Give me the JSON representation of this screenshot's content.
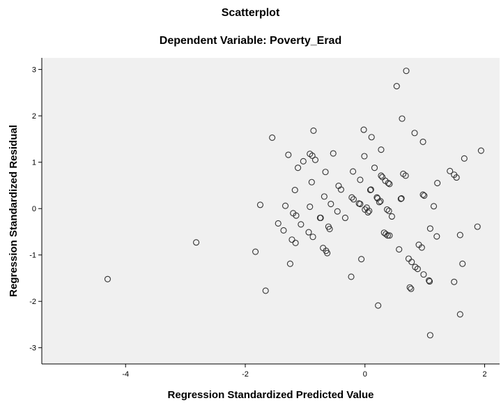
{
  "chart_data": {
    "type": "scatter",
    "title": "Scatterplot",
    "subtitle": "Dependent Variable: Poverty_Erad",
    "xlabel": "Regression Standardized Predicted Value",
    "ylabel": "Regression Standardized Residual",
    "xlim": [
      -5.4,
      2.25
    ],
    "ylim": [
      -3.35,
      3.25
    ],
    "xticks": [
      -4,
      -2,
      0,
      2
    ],
    "yticks": [
      -3,
      -2,
      -1,
      0,
      1,
      2,
      3
    ],
    "grid": false,
    "legend": "none",
    "plot_background": "#f0f0f0",
    "marker_color": "#333333",
    "points": [
      [
        -4.3,
        -1.52
      ],
      [
        -2.82,
        -0.73
      ],
      [
        -1.83,
        -0.93
      ],
      [
        -1.75,
        0.08
      ],
      [
        -1.66,
        -1.77
      ],
      [
        -1.55,
        1.53
      ],
      [
        -1.45,
        -0.32
      ],
      [
        -1.36,
        -0.47
      ],
      [
        -1.33,
        0.06
      ],
      [
        -1.28,
        1.16
      ],
      [
        -1.25,
        -1.19
      ],
      [
        -1.22,
        -0.67
      ],
      [
        -1.2,
        -0.1
      ],
      [
        -1.17,
        0.4
      ],
      [
        -1.16,
        -0.74
      ],
      [
        -1.15,
        -0.15
      ],
      [
        -1.12,
        0.88
      ],
      [
        -1.07,
        -0.34
      ],
      [
        -1.03,
        1.02
      ],
      [
        -0.94,
        -0.51
      ],
      [
        -0.92,
        0.04
      ],
      [
        -0.92,
        1.18
      ],
      [
        -0.89,
        0.57
      ],
      [
        -0.88,
        1.14
      ],
      [
        -0.87,
        -0.61
      ],
      [
        -0.86,
        1.68
      ],
      [
        -0.83,
        1.05
      ],
      [
        -0.75,
        -0.2
      ],
      [
        -0.74,
        -0.2
      ],
      [
        -0.7,
        -0.85
      ],
      [
        -0.68,
        0.26
      ],
      [
        -0.66,
        0.79
      ],
      [
        -0.65,
        -0.91
      ],
      [
        -0.63,
        -0.96
      ],
      [
        -0.61,
        -0.39
      ],
      [
        -0.59,
        -0.44
      ],
      [
        -0.57,
        0.1
      ],
      [
        -0.53,
        1.19
      ],
      [
        -0.46,
        -0.06
      ],
      [
        -0.44,
        0.49
      ],
      [
        -0.4,
        0.41
      ],
      [
        -0.33,
        -0.2
      ],
      [
        -0.23,
        -1.47
      ],
      [
        -0.22,
        0.24
      ],
      [
        -0.2,
        0.8
      ],
      [
        -0.19,
        0.2
      ],
      [
        -0.1,
        0.11
      ],
      [
        -0.08,
        0.1
      ],
      [
        -0.08,
        0.62
      ],
      [
        -0.06,
        -1.09
      ],
      [
        -0.02,
        1.7
      ],
      [
        -0.01,
        1.13
      ],
      [
        0.0,
        -0.02
      ],
      [
        0.03,
        0.02
      ],
      [
        0.05,
        -0.08
      ],
      [
        0.07,
        -0.05
      ],
      [
        0.09,
        0.4
      ],
      [
        0.1,
        0.41
      ],
      [
        0.11,
        1.54
      ],
      [
        0.16,
        0.88
      ],
      [
        0.2,
        0.24
      ],
      [
        0.21,
        0.22
      ],
      [
        0.22,
        -2.09
      ],
      [
        0.24,
        0.14
      ],
      [
        0.26,
        0.16
      ],
      [
        0.27,
        0.71
      ],
      [
        0.27,
        1.27
      ],
      [
        0.29,
        0.68
      ],
      [
        0.32,
        -0.52
      ],
      [
        0.34,
        0.6
      ],
      [
        0.35,
        -0.55
      ],
      [
        0.37,
        -0.02
      ],
      [
        0.38,
        -0.58
      ],
      [
        0.39,
        0.55
      ],
      [
        0.4,
        -0.05
      ],
      [
        0.41,
        -0.58
      ],
      [
        0.41,
        0.53
      ],
      [
        0.45,
        -0.17
      ],
      [
        0.53,
        2.64
      ],
      [
        0.57,
        -0.88
      ],
      [
        0.6,
        0.21
      ],
      [
        0.61,
        0.22
      ],
      [
        0.62,
        1.94
      ],
      [
        0.64,
        0.75
      ],
      [
        0.68,
        0.71
      ],
      [
        0.69,
        2.97
      ],
      [
        0.73,
        -1.08
      ],
      [
        0.75,
        -1.7
      ],
      [
        0.77,
        -1.73
      ],
      [
        0.78,
        -1.15
      ],
      [
        0.83,
        1.63
      ],
      [
        0.84,
        -1.26
      ],
      [
        0.88,
        -1.3
      ],
      [
        0.9,
        -0.78
      ],
      [
        0.95,
        -0.84
      ],
      [
        0.97,
        0.3
      ],
      [
        0.97,
        1.44
      ],
      [
        0.98,
        -1.42
      ],
      [
        0.99,
        0.28
      ],
      [
        1.07,
        -1.55
      ],
      [
        1.08,
        -1.57
      ],
      [
        1.09,
        -2.73
      ],
      [
        1.09,
        -0.43
      ],
      [
        1.15,
        0.05
      ],
      [
        1.2,
        -0.6
      ],
      [
        1.21,
        0.55
      ],
      [
        1.42,
        0.81
      ],
      [
        1.49,
        -1.58
      ],
      [
        1.49,
        0.73
      ],
      [
        1.53,
        0.67
      ],
      [
        1.59,
        -0.57
      ],
      [
        1.59,
        -2.28
      ],
      [
        1.63,
        -1.19
      ],
      [
        1.66,
        1.08
      ],
      [
        1.88,
        -0.39
      ],
      [
        1.94,
        1.25
      ]
    ]
  }
}
